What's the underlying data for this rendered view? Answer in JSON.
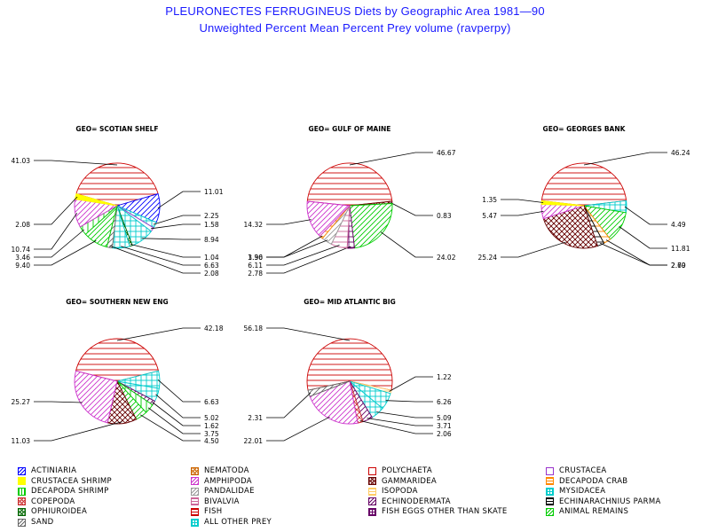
{
  "title": "PLEURONECTES FERRUGINEUS Diets by Geographic Area 1981—90",
  "subtitle": "Unweighted Percent Mean Percent Prey  volume (ravperpy)",
  "chart_data": {
    "type": "pie",
    "title": "PLEURONECTES FERRUGINEUS Diets by Geographic Area 1981—90",
    "subtitle": "Unweighted Percent Mean Percent Prey  volume (ravperpy)",
    "pies": [
      {
        "label": "GEO= SCOTIAN SHELF",
        "slices": [
          {
            "name": "FISH",
            "value": 41.03,
            "label": "41.03"
          },
          {
            "name": "ACTINIARIA",
            "value": 11.01,
            "label": "11.01"
          },
          {
            "name": "ALL OTHER PREY",
            "value": 2.25,
            "label": "2.25"
          },
          {
            "name": "CRUSTACEA",
            "value": 1.58,
            "label": "1.58"
          },
          {
            "name": "ALL OTHER PREY",
            "value": 8.94,
            "label": "8.94"
          },
          {
            "name": "OPHIUROIDEA",
            "value": 1.04,
            "label": "1.04"
          },
          {
            "name": "MYSIDACEA",
            "value": 6.63,
            "label": "6.63"
          },
          {
            "name": "SAND",
            "value": 2.08,
            "label": "2.08"
          },
          {
            "name": "ANIMAL REMAINS",
            "value": 9.4,
            "label": "9.40"
          },
          {
            "name": "DECAPODA SHRIMP",
            "value": 3.46,
            "label": "3.46"
          },
          {
            "name": "AMPHIPODA",
            "value": 10.74,
            "label": "10.74"
          },
          {
            "name": "CRUSTACEA SHRIMP",
            "value": 2.08,
            "label": "2.08"
          }
        ]
      },
      {
        "label": "GEO= GULF OF MAINE",
        "slices": [
          {
            "name": "FISH",
            "value": 46.67,
            "label": "46.67"
          },
          {
            "name": "GAMMARIDEA",
            "value": 0.83,
            "label": "0.83"
          },
          {
            "name": "ANIMAL REMAINS",
            "value": 24.02,
            "label": "24.02"
          },
          {
            "name": "FISH EGGS OTHER THAN SKATE",
            "value": 2.78,
            "label": "2.78"
          },
          {
            "name": "BIVALVIA",
            "value": 6.11,
            "label": "6.11"
          },
          {
            "name": "PANDALIDAE",
            "value": 3.96,
            "label": "3.96"
          },
          {
            "name": "DECAPODA CRAB",
            "value": 1.3,
            "label": "1.30"
          },
          {
            "name": "AMPHIPODA",
            "value": 14.32,
            "label": "14.32"
          }
        ]
      },
      {
        "label": "GEO= GEORGES BANK",
        "slices": [
          {
            "name": "FISH",
            "value": 46.24,
            "label": "46.24"
          },
          {
            "name": "ALL OTHER PREY",
            "value": 4.49,
            "label": "4.49"
          },
          {
            "name": "ANIMAL REMAINS",
            "value": 11.81,
            "label": "11.81"
          },
          {
            "name": "DECAPODA CRAB",
            "value": 2.79,
            "label": "2.79"
          },
          {
            "name": "ECHINARACHNIUS PARMA",
            "value": 2.6,
            "label": "2.60"
          },
          {
            "name": "GAMMARIDEA",
            "value": 25.24,
            "label": "25.24"
          },
          {
            "name": "AMPHIPODA",
            "value": 5.47,
            "label": "5.47"
          },
          {
            "name": "CRUSTACEA SHRIMP",
            "value": 1.35,
            "label": "1.35"
          }
        ]
      },
      {
        "label": "GEO= SOUTHERN NEW ENG",
        "slices": [
          {
            "name": "FISH",
            "value": 42.18,
            "label": "42.18"
          },
          {
            "name": "ALL OTHER PREY",
            "value": 6.63,
            "label": "6.63"
          },
          {
            "name": "MYSIDACEA",
            "value": 5.02,
            "label": "5.02"
          },
          {
            "name": "ECHINODERMATA",
            "value": 1.62,
            "label": "1.62"
          },
          {
            "name": "DECAPODA SHRIMP",
            "value": 3.75,
            "label": "3.75"
          },
          {
            "name": "ANIMAL REMAINS",
            "value": 4.5,
            "label": "4.50"
          },
          {
            "name": "GAMMARIDEA",
            "value": 11.03,
            "label": "11.03"
          },
          {
            "name": "AMPHIPODA",
            "value": 25.27,
            "label": "25.27"
          }
        ]
      },
      {
        "label": "GEO= MID ATLANTIC BIG",
        "slices": [
          {
            "name": "FISH",
            "value": 56.18,
            "label": "56.18"
          },
          {
            "name": "ISOPODA",
            "value": 1.22,
            "label": "1.22"
          },
          {
            "name": "ALL OTHER PREY",
            "value": 6.26,
            "label": "6.26"
          },
          {
            "name": "MYSIDACEA",
            "value": 5.09,
            "label": "5.09"
          },
          {
            "name": "ECHINODERMATA",
            "value": 3.71,
            "label": "3.71"
          },
          {
            "name": "COPEPODA",
            "value": 2.06,
            "label": "2.06"
          },
          {
            "name": "AMPHIPODA",
            "value": 22.01,
            "label": "22.01"
          },
          {
            "name": "SAND",
            "value": 2.31,
            "label": "2.31"
          }
        ]
      }
    ],
    "legend": [
      {
        "name": "ACTINIARIA",
        "color": "#0000ff",
        "pattern": "hatch-diag"
      },
      {
        "name": "NEMATODA",
        "color": "#cc6600",
        "pattern": "cross-diag"
      },
      {
        "name": "POLYCHAETA",
        "color": "#cc0000",
        "pattern": "empty"
      },
      {
        "name": "CRUSTACEA",
        "color": "#9933cc",
        "pattern": "empty"
      },
      {
        "name": "CRUSTACEA SHRIMP",
        "color": "#ffff00",
        "pattern": "solid"
      },
      {
        "name": "AMPHIPODA",
        "color": "#cc33cc",
        "pattern": "hatch-diag"
      },
      {
        "name": "GAMMARIDEA",
        "color": "#660000",
        "pattern": "crosshatch-diag"
      },
      {
        "name": "DECAPODA CRAB",
        "color": "#ff8800",
        "pattern": "hatch-horiz"
      },
      {
        "name": "DECAPODA SHRIMP",
        "color": "#00cc00",
        "pattern": "hatch-vert"
      },
      {
        "name": "PANDALIDAE",
        "color": "#999999",
        "pattern": "hatch-diag"
      },
      {
        "name": "ISOPODA",
        "color": "#ffcc66",
        "pattern": "hatch-horiz"
      },
      {
        "name": "MYSIDACEA",
        "color": "#00cccc",
        "pattern": "crosshatch"
      },
      {
        "name": "COPEPODA",
        "color": "#cc3333",
        "pattern": "crosshatch-diag"
      },
      {
        "name": "BIVALVIA",
        "color": "#cc6699",
        "pattern": "hatch-horiz"
      },
      {
        "name": "ECHINODERMATA",
        "color": "#660066",
        "pattern": "hatch-diag"
      },
      {
        "name": "ECHINARACHNIUS PARMA",
        "color": "#000000",
        "pattern": "hatch-horiz"
      },
      {
        "name": "OPHIUROIDEA",
        "color": "#006600",
        "pattern": "cross-diag"
      },
      {
        "name": "FISH",
        "color": "#cc0000",
        "pattern": "hatch-horiz"
      },
      {
        "name": "FISH EGGS OTHER THAN SKATE",
        "color": "#660066",
        "pattern": "crosshatch"
      },
      {
        "name": "ANIMAL REMAINS",
        "color": "#00cc00",
        "pattern": "hatch-diag"
      },
      {
        "name": "SAND",
        "color": "#666666",
        "pattern": "hatch-diag"
      },
      {
        "name": "ALL OTHER PREY",
        "color": "#00cccc",
        "pattern": "crosshatch"
      }
    ]
  }
}
